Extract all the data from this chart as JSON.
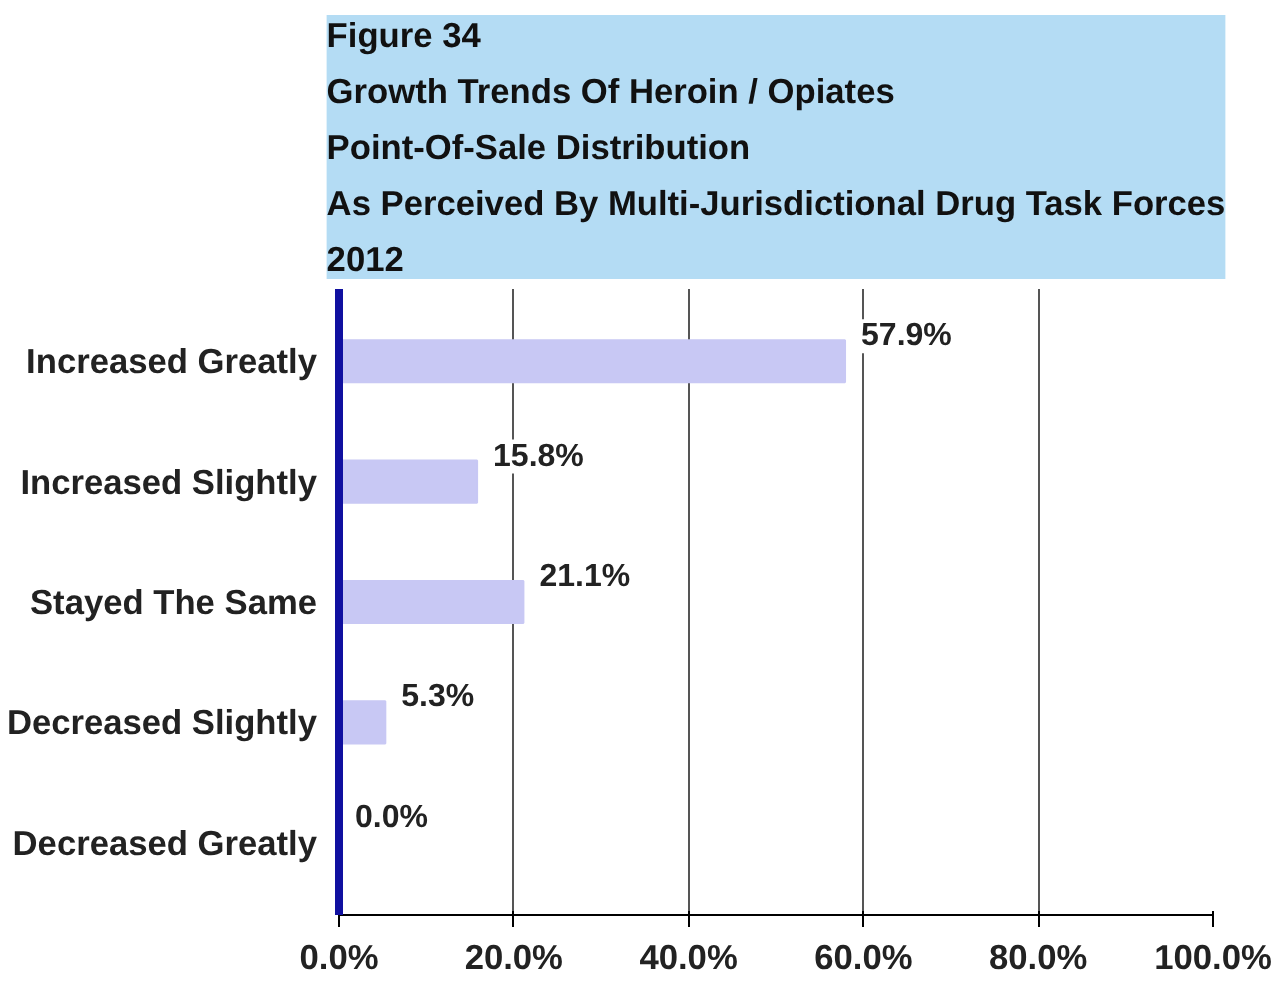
{
  "chart_data": {
    "type": "bar",
    "orientation": "horizontal",
    "title": "Figure 34\nGrowth Trends Of Heroin / Opiates\nPoint-Of-Sale Distribution\nAs Perceived By Multi-Jurisdictional Drug Task Forces\n2012",
    "categories": [
      "Increased Greatly",
      "Increased Slightly",
      "Stayed The Same",
      "Decreased Slightly",
      "Decreased Greatly"
    ],
    "values": [
      57.9,
      15.8,
      21.1,
      5.3,
      0.0
    ],
    "value_labels": [
      "57.9%",
      "15.8%",
      "21.1%",
      "5.3%",
      "0.0%"
    ],
    "color": "#c8c8f4",
    "xlim": [
      0,
      100
    ],
    "xticks": [
      {
        "value": 0,
        "label": "0.0%"
      },
      {
        "value": 20,
        "label": "20.0%"
      },
      {
        "value": 40,
        "label": "40.0%"
      },
      {
        "value": 60,
        "label": "60.0%"
      },
      {
        "value": 80,
        "label": "80.0%"
      },
      {
        "value": 100,
        "label": "100.0%"
      }
    ],
    "grid": "x"
  }
}
